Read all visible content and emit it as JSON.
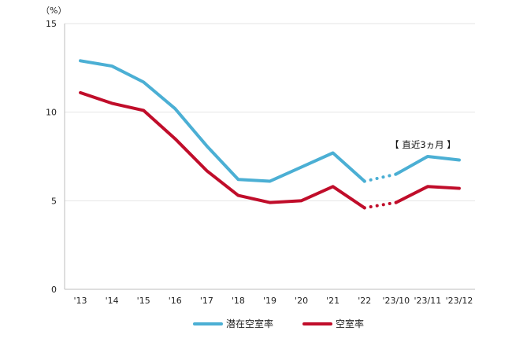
{
  "chart_data": {
    "type": "line",
    "unit_label": "（%）",
    "categories": [
      "'13",
      "'14",
      "'15",
      "'16",
      "'17",
      "'18",
      "'19",
      "'20",
      "'21",
      "'22",
      "'23/10",
      "'23/11",
      "'23/12"
    ],
    "ylim": [
      0,
      15
    ],
    "yticks": [
      0,
      5,
      10,
      15
    ],
    "grid": true,
    "legend_position": "bottom",
    "annotation": "【 直近3ヵ月 】",
    "dotted_segment": [
      9,
      10
    ],
    "series": [
      {
        "name": "潜在空室率",
        "color": "#4bafd4",
        "values": [
          12.9,
          12.6,
          11.7,
          10.2,
          8.1,
          6.2,
          6.1,
          6.9,
          7.7,
          6.1,
          6.5,
          7.5,
          7.3
        ]
      },
      {
        "name": "空室率",
        "color": "#c00d2a",
        "values": [
          11.1,
          10.5,
          10.1,
          8.5,
          6.7,
          5.3,
          4.9,
          5.0,
          5.8,
          4.6,
          4.9,
          5.8,
          5.7
        ]
      }
    ]
  }
}
